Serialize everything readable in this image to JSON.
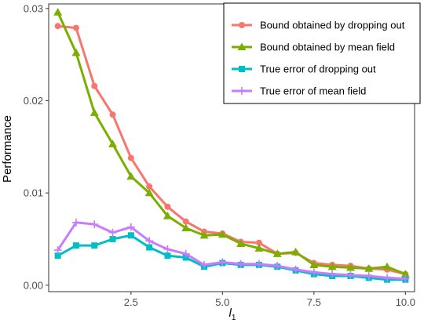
{
  "chart_data": {
    "type": "line",
    "xlabel": "l",
    "xlabel_subscript": "1",
    "ylabel": "Performance",
    "xlim": [
      0.25,
      10.25
    ],
    "ylim": [
      -0.0007,
      0.0305
    ],
    "x_ticks": [
      2.5,
      5.0,
      7.5,
      10.0
    ],
    "x_tick_labels": [
      "2.5",
      "5.0",
      "7.5",
      "10.0"
    ],
    "y_ticks": [
      0.0,
      0.01,
      0.02,
      0.03
    ],
    "y_tick_labels": [
      "0.00",
      "0.01",
      "0.02",
      "0.03"
    ],
    "grid": false,
    "legend_position": "top-right",
    "x": [
      0.5,
      1.0,
      1.5,
      2.0,
      2.5,
      3.0,
      3.5,
      4.0,
      4.5,
      5.0,
      5.5,
      6.0,
      6.5,
      7.0,
      7.5,
      8.0,
      8.5,
      9.0,
      9.5,
      10.0
    ],
    "series": [
      {
        "name": "Bound obtained by dropping out",
        "color": "#F8766D",
        "marker": "circle",
        "values": [
          0.0281,
          0.0279,
          0.0216,
          0.0185,
          0.0138,
          0.0107,
          0.0085,
          0.0069,
          0.0058,
          0.0056,
          0.0047,
          0.0046,
          0.0034,
          0.0035,
          0.0024,
          0.0022,
          0.0021,
          0.0018,
          0.0017,
          0.0012
        ]
      },
      {
        "name": "Bound obtained by mean field",
        "color": "#7CAE00",
        "marker": "triangle",
        "values": [
          0.0296,
          0.0252,
          0.0187,
          0.0153,
          0.0118,
          0.01,
          0.0075,
          0.0062,
          0.0054,
          0.0055,
          0.0045,
          0.004,
          0.0034,
          0.0036,
          0.0022,
          0.002,
          0.0019,
          0.0018,
          0.002,
          0.0012
        ]
      },
      {
        "name": "True error of dropping out",
        "color": "#00BFC4",
        "marker": "square",
        "values": [
          0.0032,
          0.0043,
          0.0043,
          0.005,
          0.0054,
          0.0041,
          0.0032,
          0.003,
          0.002,
          0.0024,
          0.0022,
          0.0022,
          0.002,
          0.0016,
          0.0012,
          0.001,
          0.001,
          0.0008,
          0.0006,
          0.0006
        ]
      },
      {
        "name": "True error of mean field",
        "color": "#C77CFF",
        "marker": "cross",
        "values": [
          0.0038,
          0.0068,
          0.0066,
          0.0057,
          0.0063,
          0.0048,
          0.0039,
          0.0034,
          0.0022,
          0.0025,
          0.0023,
          0.0023,
          0.0021,
          0.0017,
          0.0014,
          0.0012,
          0.0011,
          0.001,
          0.0008,
          0.0007
        ]
      }
    ]
  }
}
